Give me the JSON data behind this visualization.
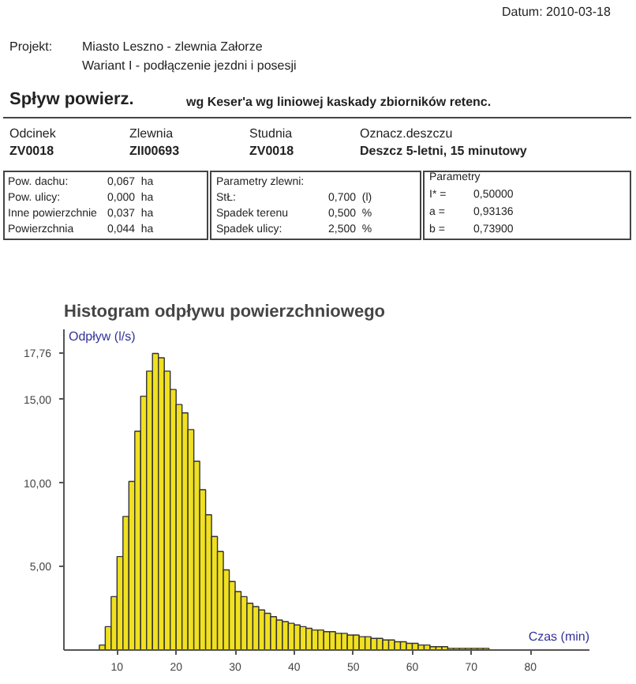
{
  "chart_data": {
    "type": "histogram",
    "title": "Histogram odpływu powierzchniowego",
    "xlabel": "Czas (min)",
    "ylabel": "Odpływ (l/s)",
    "annotations": [
      "Datum: 2010-03-18",
      "Projekt:",
      "Miasto Leszno - zlewnia Załorze",
      "Wariant I - podłączenie jezdni i posesji",
      "Spływ powierz.",
      "wg Keser'a wg liniowej kaskady zbiorników retenc.",
      "Odcinek",
      "ZV0018",
      "Zlewnia",
      "ZII00693",
      "Studnia",
      "ZV0018",
      "Oznacz.deszczu",
      "Deszcz 5-letni, 15 minutowy",
      "Pow. dachu:",
      "0,067  ha",
      "Pow. ulicy:",
      "0,000  ha",
      "Inne powierzchnie",
      "0,037  ha",
      "Powierzchnia",
      "0,044  ha",
      "Parametry zlewni:",
      "StŁ:",
      "0,700  (l)",
      "Spadek terenu",
      "0,500  %",
      "Spadek ulicy:",
      "2,500  %",
      "Parametry",
      "I* =",
      "0,50000",
      "a =",
      "0,93136",
      "b =",
      "0,73900"
    ],
    "bins": [
      7,
      8,
      9,
      10,
      11,
      12,
      13,
      14,
      15,
      16,
      17,
      18,
      19,
      20,
      21,
      22,
      23,
      24,
      25,
      26,
      27,
      28,
      29,
      30,
      31,
      32,
      33,
      34,
      35,
      36,
      37,
      38,
      39,
      40,
      41,
      42,
      43,
      44,
      45,
      46,
      47,
      48,
      49,
      50,
      51,
      52,
      53,
      54,
      55,
      56,
      57,
      58,
      59,
      60,
      61,
      62,
      63,
      64,
      65,
      66,
      67,
      68,
      69,
      70,
      71,
      72,
      73
    ],
    "values": [
      0.3,
      1.4,
      3.2,
      5.6,
      8.0,
      10.1,
      13.1,
      15.2,
      16.7,
      17.76,
      17.5,
      16.7,
      15.6,
      14.7,
      14.2,
      13.2,
      11.3,
      9.6,
      8.1,
      6.8,
      5.9,
      4.8,
      4.1,
      3.5,
      3.2,
      2.8,
      2.6,
      2.4,
      2.2,
      2.0,
      1.8,
      1.7,
      1.6,
      1.5,
      1.4,
      1.3,
      1.2,
      1.2,
      1.1,
      1.1,
      1.0,
      1.0,
      0.9,
      0.9,
      0.8,
      0.8,
      0.7,
      0.7,
      0.6,
      0.6,
      0.5,
      0.5,
      0.4,
      0.4,
      0.3,
      0.3,
      0.2,
      0.2,
      0.2,
      0.1,
      0.1,
      0.1,
      0.1,
      0.1,
      0.1,
      0.1
    ],
    "color": "#f0e020",
    "xlim": [
      1,
      90
    ],
    "xticks": [
      10,
      20,
      30,
      40,
      50,
      60,
      70,
      80
    ],
    "ylim": [
      0,
      19.2
    ],
    "yticks": [
      {
        "value": 5,
        "label": "5,00"
      },
      {
        "value": 10,
        "label": "10,00"
      },
      {
        "value": 15,
        "label": "15,00"
      },
      {
        "value": 17.76,
        "label": "17,76"
      }
    ],
    "grid": false
  }
}
